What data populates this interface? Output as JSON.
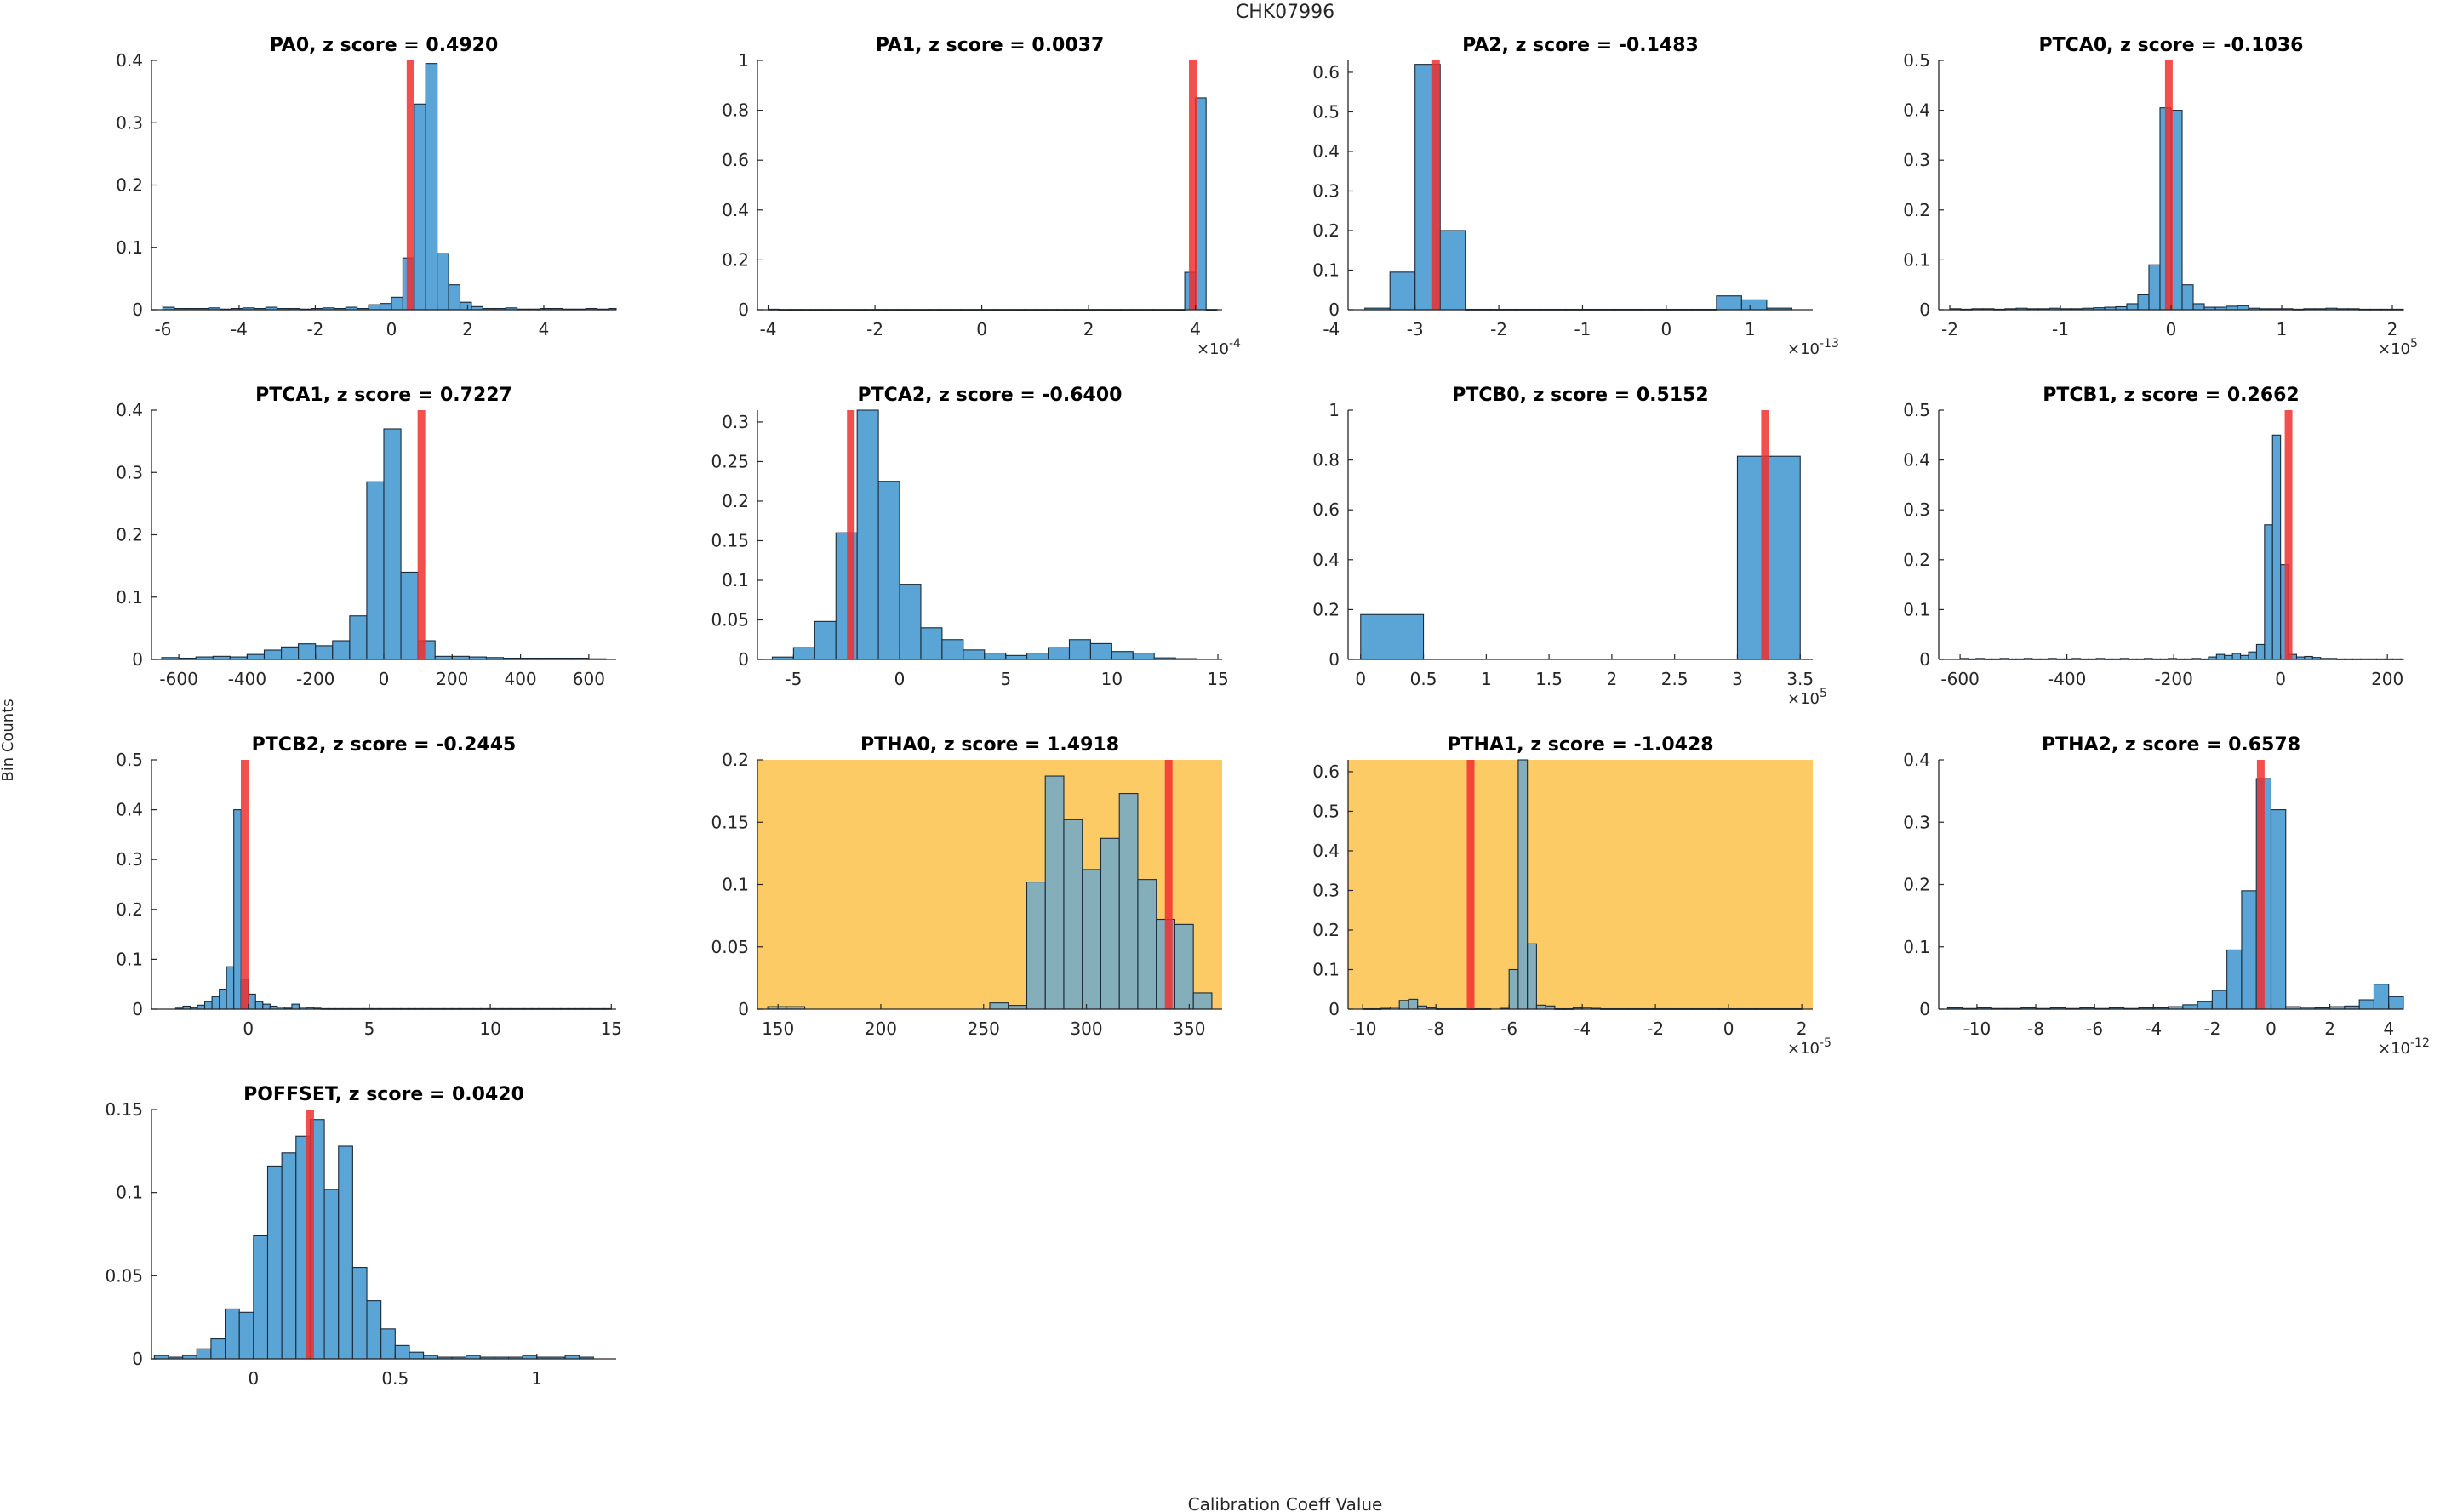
{
  "figure": {
    "suptitle": "CHK07996",
    "xlabel": "Calibration Coeff Value",
    "ylabel": "Bin Counts",
    "colors": {
      "bar": "#5BA4D6",
      "bar_edge": "#1b2a38",
      "marker": "#F03030",
      "highlight_bg": "#FDCB66",
      "axis": "#262626"
    }
  },
  "chart_data": [
    {
      "type": "bar",
      "name": "PA0",
      "title": "PA0, z score = 0.4920",
      "highlight": false,
      "xlim": [
        -6.3,
        5.9
      ],
      "ylim": [
        0,
        0.4
      ],
      "xticks": [
        -6,
        -4,
        -2,
        0,
        2,
        4
      ],
      "xtick_labels": [
        "-6",
        "-4",
        "-2",
        "0",
        "2",
        "4"
      ],
      "yticks": [
        0,
        0.1,
        0.2,
        0.3,
        0.4
      ],
      "ytick_labels": [
        "0",
        "0.1",
        "0.2",
        "0.3",
        "0.4"
      ],
      "bins": {
        "start": -6.0,
        "width": 0.3,
        "values": [
          0.004,
          0.002,
          0.002,
          0.002,
          0.003,
          0.001,
          0.002,
          0.003,
          0.002,
          0.004,
          0.002,
          0.002,
          0.001,
          0.002,
          0.003,
          0.002,
          0.004,
          0.002,
          0.008,
          0.01,
          0.02,
          0.083,
          0.33,
          0.395,
          0.09,
          0.04,
          0.012,
          0.005,
          0.002,
          0.002,
          0.003,
          0.001,
          0.001,
          0.002,
          0.002,
          0.001,
          0.001,
          0.002,
          0.001,
          0.002
        ]
      },
      "marker": 0.5
    },
    {
      "type": "bar",
      "name": "PA1",
      "title": "PA1, z score = 0.0037",
      "highlight": false,
      "xlim": [
        -4.2,
        4.5
      ],
      "ylim": [
        0,
        1.0
      ],
      "exponent": "×10^-4",
      "xticks": [
        -4,
        -2,
        0,
        2,
        4
      ],
      "xtick_labels": [
        "-4",
        "-2",
        "0",
        "2",
        "4"
      ],
      "yticks": [
        0,
        0.2,
        0.4,
        0.6,
        0.8,
        1.0
      ],
      "ytick_labels": [
        "0",
        "0.2",
        "0.4",
        "0.6",
        "0.8",
        "1"
      ],
      "bins": {
        "start": -4.0,
        "width": 0.2,
        "values": [
          0.002,
          0.001,
          0.001,
          0.001,
          0.001,
          0.001,
          0.001,
          0.001,
          0.001,
          0.001,
          0.001,
          0.001,
          0.001,
          0.001,
          0.001,
          0.001,
          0.001,
          0.001,
          0.001,
          0.001,
          0.001,
          0.001,
          0.001,
          0.001,
          0.001,
          0.001,
          0.001,
          0.001,
          0.001,
          0.001,
          0.001,
          0.001,
          0.001,
          0.001,
          0.001,
          0.001,
          0.001,
          0.001,
          0.001,
          0.15,
          0.85,
          0.001
        ]
      },
      "marker": 3.95
    },
    {
      "type": "bar",
      "name": "PA2",
      "title": "PA2, z score = -0.1483",
      "highlight": false,
      "xlim": [
        -3.8,
        1.75
      ],
      "ylim": [
        0,
        0.63
      ],
      "exponent": "×10^-13",
      "xticks": [
        -4,
        -3,
        -2,
        -1,
        0,
        1
      ],
      "xtick_labels": [
        "-4",
        "-3",
        "-2",
        "-1",
        "0",
        "1"
      ],
      "yticks": [
        0,
        0.1,
        0.2,
        0.3,
        0.4,
        0.5,
        0.6
      ],
      "ytick_labels": [
        "0",
        "0.1",
        "0.2",
        "0.3",
        "0.4",
        "0.5",
        "0.6"
      ],
      "bins": {
        "start": -3.6,
        "width": 0.3,
        "values": [
          0.004,
          0.095,
          0.62,
          0.2,
          0.001,
          0.001,
          0.001,
          0.001,
          0.001,
          0.001,
          0.001,
          0.001,
          0.001,
          0.001,
          0.035,
          0.025,
          0.004
        ]
      },
      "marker": -2.75
    },
    {
      "type": "bar",
      "name": "PTCA0",
      "title": "PTCA0, z score = -0.1036",
      "highlight": false,
      "xlim": [
        -2.1,
        2.1
      ],
      "ylim": [
        0,
        0.5
      ],
      "exponent": "×10^5",
      "xticks": [
        -2,
        -1,
        0,
        1,
        2
      ],
      "xtick_labels": [
        "-2",
        "-1",
        "0",
        "1",
        "2"
      ],
      "yticks": [
        0,
        0.1,
        0.2,
        0.3,
        0.4,
        0.5
      ],
      "ytick_labels": [
        "0",
        "0.1",
        "0.2",
        "0.3",
        "0.4",
        "0.5"
      ],
      "bins": {
        "start": -2.0,
        "width": 0.1,
        "values": [
          0.002,
          0.001,
          0.002,
          0.002,
          0.001,
          0.002,
          0.003,
          0.002,
          0.002,
          0.003,
          0.002,
          0.002,
          0.003,
          0.004,
          0.005,
          0.006,
          0.012,
          0.03,
          0.09,
          0.405,
          0.4,
          0.05,
          0.012,
          0.005,
          0.005,
          0.007,
          0.008,
          0.003,
          0.002,
          0.002,
          0.002,
          0.001,
          0.002,
          0.002,
          0.003,
          0.002,
          0.002,
          0.001,
          0.001,
          0.001,
          0.001
        ]
      },
      "marker": -0.02
    },
    {
      "type": "bar",
      "name": "PTCA1",
      "title": "PTCA1, z score = 0.7227",
      "highlight": false,
      "xlim": [
        -680,
        680
      ],
      "ylim": [
        0,
        0.4
      ],
      "xticks": [
        -600,
        -400,
        -200,
        0,
        200,
        400,
        600
      ],
      "xtick_labels": [
        "-600",
        "-400",
        "-200",
        "0",
        "200",
        "400",
        "600"
      ],
      "yticks": [
        0,
        0.1,
        0.2,
        0.3,
        0.4
      ],
      "ytick_labels": [
        "0",
        "0.1",
        "0.2",
        "0.3",
        "0.4"
      ],
      "bins": {
        "start": -650,
        "width": 50,
        "values": [
          0.003,
          0.002,
          0.004,
          0.005,
          0.004,
          0.008,
          0.015,
          0.02,
          0.025,
          0.022,
          0.03,
          0.07,
          0.285,
          0.37,
          0.14,
          0.03,
          0.005,
          0.005,
          0.004,
          0.003,
          0.002,
          0.002,
          0.002,
          0.002,
          0.002,
          0.001
        ]
      },
      "marker": 110
    },
    {
      "type": "bar",
      "name": "PTCA2",
      "title": "PTCA2, z score = -0.6400",
      "highlight": false,
      "xlim": [
        -6.7,
        15.2
      ],
      "ylim": [
        0,
        0.315
      ],
      "xticks": [
        -5,
        0,
        5,
        10,
        15
      ],
      "xtick_labels": [
        "-5",
        "0",
        "5",
        "10",
        "15"
      ],
      "yticks": [
        0,
        0.05,
        0.1,
        0.15,
        0.2,
        0.25,
        0.3
      ],
      "ytick_labels": [
        "0",
        "0.05",
        "0.1",
        "0.15",
        "0.2",
        "0.25",
        "0.3"
      ],
      "bins": {
        "start": -6.0,
        "width": 1.0,
        "values": [
          0.003,
          0.015,
          0.048,
          0.16,
          0.315,
          0.225,
          0.095,
          0.04,
          0.025,
          0.012,
          0.008,
          0.005,
          0.008,
          0.015,
          0.025,
          0.02,
          0.01,
          0.008,
          0.002,
          0.001
        ]
      },
      "marker": -2.3
    },
    {
      "type": "bar",
      "name": "PTCB0",
      "title": "PTCB0, z score = 0.5152",
      "highlight": false,
      "xlim": [
        -0.1,
        3.6
      ],
      "ylim": [
        0,
        1.0
      ],
      "exponent": "×10^5",
      "xticks": [
        0,
        0.5,
        1,
        1.5,
        2,
        2.5,
        3,
        3.5
      ],
      "xtick_labels": [
        "0",
        "0.5",
        "1",
        "1.5",
        "2",
        "2.5",
        "3",
        "3.5"
      ],
      "yticks": [
        0,
        0.2,
        0.4,
        0.6,
        0.8,
        1.0
      ],
      "ytick_labels": [
        "0",
        "0.2",
        "0.4",
        "0.6",
        "0.8",
        "1"
      ],
      "bins": {
        "start": 0.0,
        "width": 0.5,
        "values": [
          0.18,
          0.0,
          0.0,
          0.0,
          0.0,
          0.0,
          0.815
        ]
      },
      "marker": 3.22
    },
    {
      "type": "bar",
      "name": "PTCB1",
      "title": "PTCB1, z score = 0.2662",
      "highlight": false,
      "xlim": [
        -640,
        230
      ],
      "ylim": [
        0,
        0.5
      ],
      "xticks": [
        -600,
        -400,
        -200,
        0,
        200
      ],
      "xtick_labels": [
        "-600",
        "-400",
        "-200",
        "0",
        "200"
      ],
      "yticks": [
        0,
        0.1,
        0.2,
        0.3,
        0.4,
        0.5
      ],
      "ytick_labels": [
        "0",
        "0.1",
        "0.2",
        "0.3",
        "0.4",
        "0.5"
      ],
      "bins": {
        "start": -600,
        "width": 15,
        "values": [
          0.002,
          0.001,
          0.002,
          0.001,
          0.001,
          0.002,
          0.001,
          0.001,
          0.002,
          0.001,
          0.001,
          0.002,
          0.001,
          0.001,
          0.002,
          0.001,
          0.001,
          0.002,
          0.001,
          0.001,
          0.002,
          0.001,
          0.001,
          0.002,
          0.001,
          0.001,
          0.002,
          0.001,
          0.001,
          0.002,
          0.001,
          0.005,
          0.01,
          0.008,
          0.012,
          0.008,
          0.015,
          0.03,
          0.27,
          0.45,
          0.19,
          0.01,
          0.005,
          0.006,
          0.004,
          0.002,
          0.002,
          0.001,
          0.001,
          0.001,
          0.001,
          0.001,
          0.001,
          0.001,
          0.001,
          0.001
        ]
      },
      "marker": 15
    },
    {
      "type": "bar",
      "name": "PTCB2",
      "title": "PTCB2, z score = -0.2445",
      "highlight": false,
      "xlim": [
        -4.0,
        15.2
      ],
      "ylim": [
        0,
        0.5
      ],
      "xticks": [
        0,
        5,
        10,
        15
      ],
      "xtick_labels": [
        "0",
        "5",
        "10",
        "15"
      ],
      "yticks": [
        0,
        0.1,
        0.2,
        0.3,
        0.4,
        0.5
      ],
      "ytick_labels": [
        "0",
        "0.1",
        "0.2",
        "0.3",
        "0.4",
        "0.5"
      ],
      "bins": {
        "start": -3.0,
        "width": 0.3,
        "values": [
          0.002,
          0.006,
          0.003,
          0.008,
          0.015,
          0.025,
          0.04,
          0.085,
          0.4,
          0.06,
          0.03,
          0.015,
          0.01,
          0.006,
          0.004,
          0.002,
          0.01,
          0.004,
          0.003,
          0.002,
          0.001,
          0.001,
          0.001,
          0.001,
          0.001,
          0.001,
          0.001,
          0.001,
          0.001,
          0.001,
          0.001,
          0.001,
          0.001,
          0.001,
          0.001,
          0.001,
          0.001,
          0.001,
          0.001,
          0.001,
          0.001,
          0.001,
          0.001,
          0.001,
          0.001,
          0.001,
          0.001,
          0.001,
          0.001,
          0.001,
          0.001,
          0.001,
          0.001,
          0.001,
          0.001,
          0.001,
          0.001,
          0.001,
          0.001,
          0.001
        ]
      },
      "marker": -0.15
    },
    {
      "type": "bar",
      "name": "PTHA0",
      "title": "PTHA0, z score = 1.4918",
      "highlight": true,
      "xlim": [
        140,
        366
      ],
      "ylim": [
        0,
        0.2
      ],
      "xticks": [
        150,
        200,
        250,
        300,
        350
      ],
      "xtick_labels": [
        "150",
        "200",
        "250",
        "300",
        "350"
      ],
      "yticks": [
        0,
        0.05,
        0.1,
        0.15,
        0.2
      ],
      "ytick_labels": [
        "0",
        "0.05",
        "0.1",
        "0.15",
        "0.2"
      ],
      "bins": {
        "start": 145,
        "width": 9,
        "values": [
          0.002,
          0.002,
          0.0,
          0.0,
          0.0,
          0.0,
          0.0,
          0.0,
          0.0,
          0.0,
          0.0,
          0.0,
          0.005,
          0.003,
          0.102,
          0.187,
          0.152,
          0.112,
          0.137,
          0.173,
          0.104,
          0.072,
          0.068,
          0.013
        ]
      },
      "marker": 340
    },
    {
      "type": "bar",
      "name": "PTHA1",
      "title": "PTHA1, z score = -1.0428",
      "highlight": true,
      "xlim": [
        -10.4,
        2.3
      ],
      "ylim": [
        0,
        0.63
      ],
      "exponent": "×10^-5",
      "xticks": [
        -10,
        -8,
        -6,
        -4,
        -2,
        0,
        2
      ],
      "xtick_labels": [
        "-10",
        "-8",
        "-6",
        "-4",
        "-2",
        "0",
        "2"
      ],
      "yticks": [
        0,
        0.1,
        0.2,
        0.3,
        0.4,
        0.5,
        0.6
      ],
      "ytick_labels": [
        "0",
        "0.1",
        "0.2",
        "0.3",
        "0.4",
        "0.5",
        "0.6"
      ],
      "bins": {
        "start": -10.0,
        "width": 0.25,
        "values": [
          0.001,
          0.001,
          0.002,
          0.005,
          0.022,
          0.025,
          0.008,
          0.003,
          0.001,
          0.001,
          0.001,
          0.001,
          0.001,
          0.001,
          0.0,
          0.002,
          0.1,
          0.63,
          0.165,
          0.01,
          0.008,
          0.001,
          0.001,
          0.003,
          0.004,
          0.002,
          0.001,
          0.001,
          0.001,
          0.001,
          0.001,
          0.001,
          0.001,
          0.001,
          0.001,
          0.001,
          0.001,
          0.001,
          0.001,
          0.001,
          0.001,
          0.001,
          0.001,
          0.001,
          0.001,
          0.001,
          0.001,
          0.001
        ]
      },
      "marker": -7.05
    },
    {
      "type": "bar",
      "name": "PTHA2",
      "title": "PTHA2, z score = 0.6578",
      "highlight": false,
      "xlim": [
        -11.3,
        4.5
      ],
      "ylim": [
        0,
        0.4
      ],
      "exponent": "×10^-12",
      "xticks": [
        -10,
        -8,
        -6,
        -4,
        -2,
        0,
        2,
        4
      ],
      "xtick_labels": [
        "-10",
        "-8",
        "-6",
        "-4",
        "-2",
        "0",
        "2",
        "4"
      ],
      "yticks": [
        0,
        0.1,
        0.2,
        0.3,
        0.4
      ],
      "ytick_labels": [
        "0",
        "0.1",
        "0.2",
        "0.3",
        "0.4"
      ],
      "bins": {
        "start": -11.0,
        "width": 0.5,
        "values": [
          0.002,
          0.001,
          0.002,
          0.001,
          0.001,
          0.002,
          0.001,
          0.002,
          0.001,
          0.002,
          0.001,
          0.002,
          0.001,
          0.002,
          0.002,
          0.004,
          0.007,
          0.012,
          0.03,
          0.095,
          0.19,
          0.37,
          0.32,
          0.004,
          0.003,
          0.002,
          0.004,
          0.005,
          0.015,
          0.04,
          0.02,
          0.002
        ]
      },
      "marker": -0.35
    },
    {
      "type": "bar",
      "name": "POFFSET",
      "title": "POFFSET, z score = 0.0420",
      "highlight": false,
      "xlim": [
        -0.36,
        1.28
      ],
      "ylim": [
        0,
        0.15
      ],
      "xticks": [
        0,
        0.5,
        1
      ],
      "xtick_labels": [
        "0",
        "0.5",
        "1"
      ],
      "yticks": [
        0,
        0.05,
        0.1,
        0.15
      ],
      "ytick_labels": [
        "0",
        "0.05",
        "0.1",
        "0.15"
      ],
      "bins": {
        "start": -0.35,
        "width": 0.05,
        "values": [
          0.002,
          0.001,
          0.002,
          0.006,
          0.012,
          0.03,
          0.028,
          0.074,
          0.116,
          0.124,
          0.134,
          0.144,
          0.102,
          0.128,
          0.055,
          0.035,
          0.018,
          0.008,
          0.004,
          0.002,
          0.001,
          0.001,
          0.002,
          0.001,
          0.001,
          0.001,
          0.002,
          0.001,
          0.001,
          0.002,
          0.001
        ]
      },
      "marker": 0.2
    }
  ]
}
